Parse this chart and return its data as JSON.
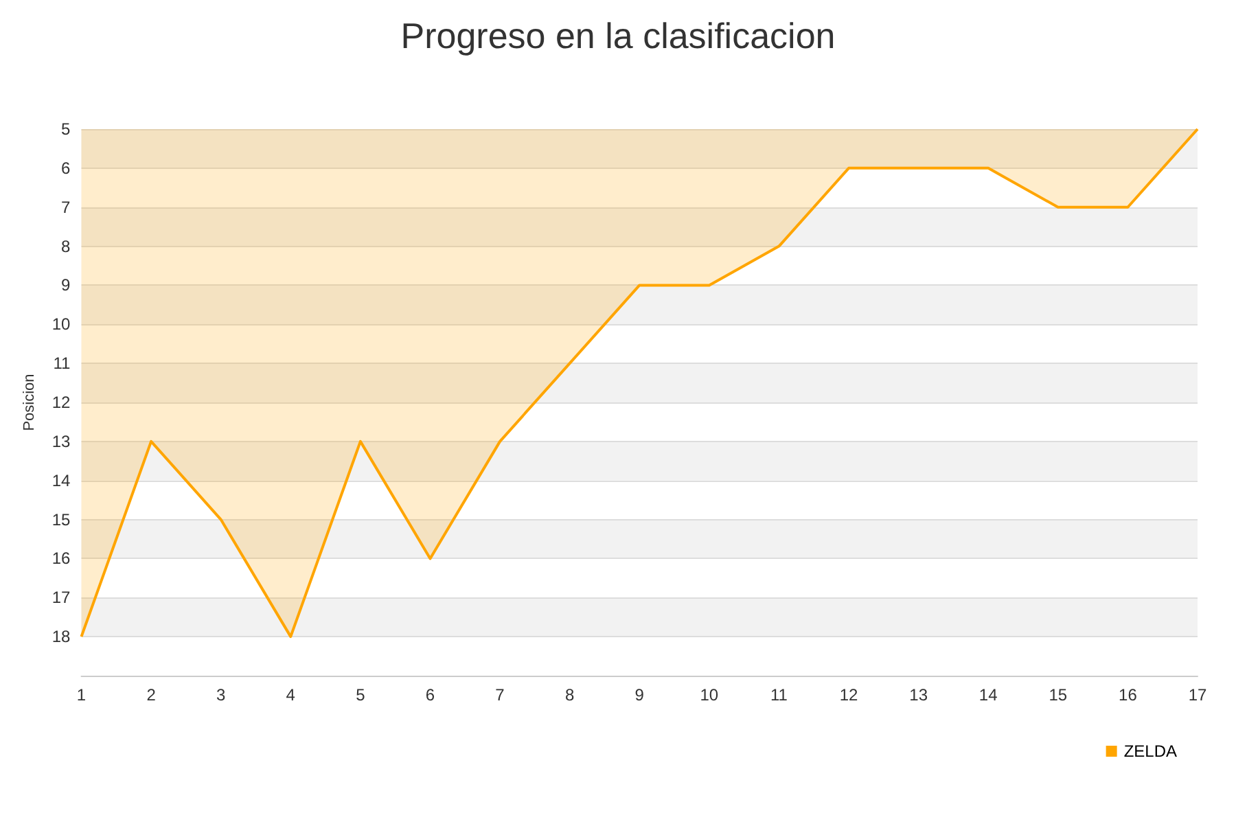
{
  "chart_data": {
    "type": "area",
    "title": "Progreso en la clasificacion",
    "ylabel": "Posicion",
    "x": [
      1,
      2,
      3,
      4,
      5,
      6,
      7,
      8,
      9,
      10,
      11,
      12,
      13,
      14,
      15,
      16,
      17
    ],
    "series": [
      {
        "name": "ZELDA",
        "color": "#ffa500",
        "values": [
          18,
          13,
          15,
          18,
          13,
          16,
          13,
          11,
          9,
          9,
          8,
          6,
          6,
          6,
          7,
          7,
          5
        ]
      }
    ],
    "xlim": [
      1,
      17
    ],
    "xticks": [
      1,
      2,
      3,
      4,
      5,
      6,
      7,
      8,
      9,
      10,
      11,
      12,
      13,
      14,
      15,
      16,
      17
    ],
    "ylim": [
      19,
      5
    ],
    "yticks": [
      5,
      6,
      7,
      8,
      9,
      10,
      11,
      12,
      13,
      14,
      15,
      16,
      17,
      18
    ],
    "grid": "y",
    "legend": "bottom right",
    "marker": "none"
  }
}
